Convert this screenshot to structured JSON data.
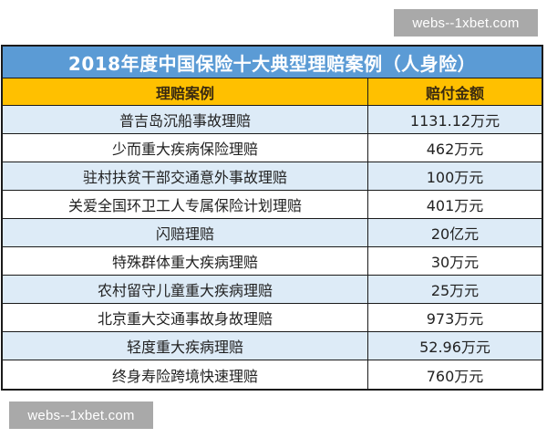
{
  "watermarks": {
    "top": "webs--1xbet.com",
    "bottom": "webs--1xbet.com"
  },
  "table": {
    "title": "2018年度中国保险十大典型理赔案例（人身险）",
    "columns": [
      "理赔案例",
      "赔付金额"
    ],
    "rows": [
      {
        "case": "普吉岛沉船事故理赔",
        "amount": "1131.12万元"
      },
      {
        "case": "少而重大疾病保险理赔",
        "amount": "462万元"
      },
      {
        "case": "驻村扶贫干部交通意外事故理赔",
        "amount": "100万元"
      },
      {
        "case": "关爱全国环卫工人专属保险计划理赔",
        "amount": "401万元"
      },
      {
        "case": "闪赔理赔",
        "amount": "20亿元"
      },
      {
        "case": "特殊群体重大疾病理赔",
        "amount": "30万元"
      },
      {
        "case": "农村留守儿童重大疾病理赔",
        "amount": "25万元"
      },
      {
        "case": "北京重大交通事故身故理赔",
        "amount": "973万元"
      },
      {
        "case": "轻度重大疾病理赔",
        "amount": "52.96万元"
      },
      {
        "case": "终身寿险跨境快速理赔",
        "amount": "760万元"
      }
    ]
  },
  "colors": {
    "title_bg": "#5b9bd5",
    "header_bg": "#ffc000",
    "alt_row_bg": "#ddebf7",
    "watermark_bg": "#a9a9a9"
  }
}
